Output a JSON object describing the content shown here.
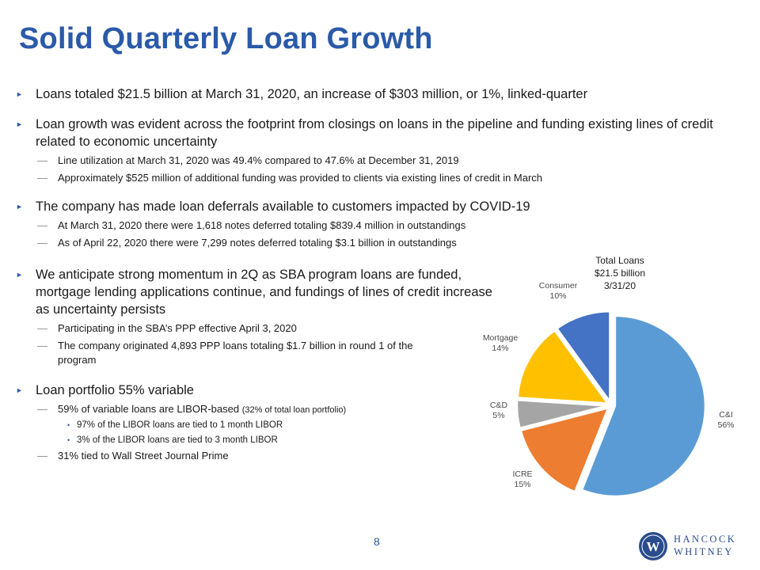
{
  "title": "Solid Quarterly Loan Growth",
  "bullets": [
    {
      "text": "Loans totaled $21.5 billion at March 31, 2020, an increase of $303 million, or 1%, linked-quarter",
      "subs": []
    },
    {
      "text": "Loan growth was evident across the footprint from closings on loans in the pipeline and funding existing lines of credit related to economic uncertainty",
      "subs": [
        "Line utilization at March 31, 2020 was 49.4% compared to 47.6% at December 31, 2019",
        "Approximately $525 million of additional funding was provided to clients via existing lines of credit in March"
      ]
    },
    {
      "text": "The company has made loan deferrals available to customers impacted by COVID-19",
      "subs": [
        "At March 31, 2020 there were 1,618 notes deferred totaling $839.4 million in outstandings",
        "As of April 22, 2020 there were 7,299 notes deferred totaling $3.1 billion in outstandings"
      ]
    },
    {
      "text": "We anticipate strong momentum in 2Q as SBA program loans are funded, mortgage lending applications continue, and fundings of lines of credit increase as uncertainty persists",
      "subs": [
        "Participating in the SBA’s PPP effective April 3, 2020",
        "The company originated 4,893 PPP loans totaling $1.7 billion in round 1 of the program"
      ]
    },
    {
      "text": "Loan portfolio 55% variable",
      "subs": [
        "59% of variable loans are LIBOR-based",
        "31% tied to Wall Street Journal Prime"
      ],
      "sub_note": "(32% of total loan portfolio)",
      "sub_sub": [
        "97% of the LIBOR loans are tied to 1 month LIBOR",
        "3% of the LIBOR loans are tied to 3 month LIBOR"
      ]
    }
  ],
  "chart_data": {
    "type": "pie",
    "title": [
      "Total Loans",
      "$21.5 billion",
      "3/31/20"
    ],
    "slices": [
      {
        "name": "C&I",
        "value": 56,
        "label": "56%",
        "color": "#5b9bd5"
      },
      {
        "name": "ICRE",
        "value": 15,
        "label": "15%",
        "color": "#ed7d31"
      },
      {
        "name": "C&D",
        "value": 5,
        "label": "5%",
        "color": "#a5a5a5"
      },
      {
        "name": "Mortgage",
        "value": 14,
        "label": "14%",
        "color": "#ffc000"
      },
      {
        "name": "Consumer",
        "value": 10,
        "label": "10%",
        "color": "#4472c4"
      }
    ]
  },
  "footer": {
    "page_number": "8",
    "logo_line1": "HANCOCK",
    "logo_line2": "WHITNEY",
    "logo_mark": "W"
  },
  "colors": {
    "accent": "#2a5aa8"
  }
}
